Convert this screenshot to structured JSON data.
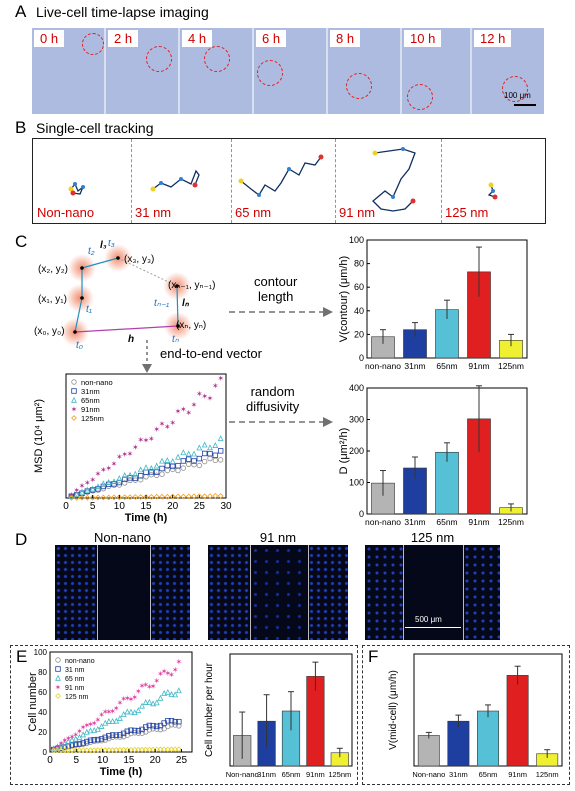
{
  "panelA": {
    "letter": "A",
    "title": "Live-cell time-lapse imaging",
    "timepoints": [
      "0 h",
      "2 h",
      "4 h",
      "6 h",
      "8 h",
      "10 h",
      "12 h"
    ],
    "scalebar": "100 μm"
  },
  "panelB": {
    "letter": "B",
    "title": "Single-cell tracking",
    "labels": [
      "Non-nano",
      "31 nm",
      "65 nm",
      "91 nm",
      "125 nm"
    ]
  },
  "panelC": {
    "letter": "C",
    "diagram": {
      "p0": "(x₀, y₀)",
      "p1": "(x₁, y₁)",
      "p2": "(x₂, y₂)",
      "p3": "(x₃, y₃)",
      "pn1": "(xₙ₋₁, yₙ₋₁)",
      "pn": "(xₙ, yₙ)",
      "t0": "t₀",
      "t1": "t₁",
      "t2": "t₂",
      "t3": "t₃",
      "tn1": "tₙ₋₁",
      "tn": "tₙ",
      "l3": "l₃",
      "ln": "lₙ",
      "h": "h"
    },
    "arrow_contour": "contour\nlength",
    "arrow_diffusivity": "random\ndiffusivity",
    "arrow_end": "end-to-end vector"
  },
  "panelD": {
    "letter": "D",
    "titles": [
      "Non-nano",
      "91 nm",
      "125 nm"
    ],
    "scalebar": "500 μm"
  },
  "panelE": {
    "letter": "E"
  },
  "panelF": {
    "letter": "F"
  },
  "chart_data": [
    {
      "id": "contour",
      "type": "bar",
      "categories": [
        "non-nano",
        "31nm",
        "65nm",
        "91nm",
        "125nm"
      ],
      "values": [
        18,
        24,
        41,
        73,
        15
      ],
      "errors": [
        6,
        6,
        8,
        21,
        5
      ],
      "colors": [
        "#b4b4b4",
        "#1f3fa0",
        "#55c0d6",
        "#e02020",
        "#f0f032"
      ],
      "ylabel": "V(contour) (μm/h)",
      "ylim": [
        0,
        100
      ],
      "yticks": [
        0,
        20,
        40,
        60,
        80,
        100
      ]
    },
    {
      "id": "diffusivity",
      "type": "bar",
      "categories": [
        "non-nano",
        "31nm",
        "65nm",
        "91nm",
        "125nm"
      ],
      "values": [
        98,
        146,
        196,
        302,
        20
      ],
      "errors": [
        40,
        35,
        30,
        105,
        12
      ],
      "colors": [
        "#b4b4b4",
        "#1f3fa0",
        "#55c0d6",
        "#e02020",
        "#f0f032"
      ],
      "ylabel": "D (μm²/h)",
      "ylim": [
        0,
        400
      ],
      "yticks": [
        0,
        100,
        200,
        300,
        400
      ]
    },
    {
      "id": "msd",
      "type": "scatter",
      "xlabel": "Time (h)",
      "ylabel": "MSD (10⁴ μm²)",
      "xlim": [
        0,
        30
      ],
      "ylim": [
        0,
        5.2
      ],
      "xticks": [
        0,
        5,
        10,
        15,
        20,
        25,
        30
      ],
      "series": [
        {
          "name": "non-nano",
          "marker": "circle",
          "color": "#909090",
          "slope": 0.058
        },
        {
          "name": "31nm",
          "marker": "square",
          "color": "#2040a8",
          "slope": 0.068
        },
        {
          "name": "65nm",
          "marker": "triangle",
          "color": "#40b8c8",
          "slope": 0.082
        },
        {
          "name": "91nm",
          "marker": "star",
          "color": "#b03090",
          "slope": 0.165
        },
        {
          "name": "125nm",
          "marker": "diamond",
          "color": "#f0a020",
          "slope": 0.003
        }
      ]
    },
    {
      "id": "cellnumber",
      "type": "scatter",
      "xlabel": "Time (h)",
      "ylabel": "Cell number",
      "xlim": [
        0,
        27
      ],
      "ylim": [
        0,
        100
      ],
      "xticks": [
        0,
        5,
        10,
        15,
        20,
        25
      ],
      "yticks": [
        0,
        20,
        40,
        60,
        80,
        100
      ],
      "series": [
        {
          "name": "non-nano",
          "marker": "circle",
          "color": "#909090",
          "slope": 1.05
        },
        {
          "name": "31 nm",
          "marker": "square",
          "color": "#2040a8",
          "slope": 1.25
        },
        {
          "name": "65 nm",
          "marker": "triangle",
          "color": "#40b8c8",
          "slope": 2.5
        },
        {
          "name": "91 nm",
          "marker": "star",
          "color": "#e040a0",
          "slope": 3.5
        },
        {
          "name": "125 nm",
          "marker": "diamond",
          "color": "#e8d020",
          "slope": 0.05
        }
      ]
    },
    {
      "id": "cellperhour",
      "type": "bar",
      "categories": [
        "Non-nano",
        "31nm",
        "65nm",
        "91nm",
        "125nm"
      ],
      "values": [
        1.5,
        2.2,
        2.7,
        4.4,
        0.65
      ],
      "errors": [
        1.15,
        1.3,
        0.95,
        0.7,
        0.22
      ],
      "colors": [
        "#b4b4b4",
        "#1f3fa0",
        "#55c0d6",
        "#e02020",
        "#f0f032"
      ],
      "ylabel": "Cell number per hour",
      "ylim": [
        0,
        5.5
      ]
    },
    {
      "id": "midcell",
      "type": "bar",
      "categories": [
        "Non-nano",
        "31nm",
        "65nm",
        "91nm",
        "125nm"
      ],
      "values": [
        1.5,
        2.2,
        2.7,
        4.45,
        0.6
      ],
      "errors": [
        0.15,
        0.3,
        0.3,
        0.45,
        0.2
      ],
      "colors": [
        "#b4b4b4",
        "#1f3fa0",
        "#55c0d6",
        "#e02020",
        "#f0f032"
      ],
      "ylabel": "V(mid-cell) (μm/h)",
      "ylim": [
        0,
        5.5
      ]
    }
  ]
}
